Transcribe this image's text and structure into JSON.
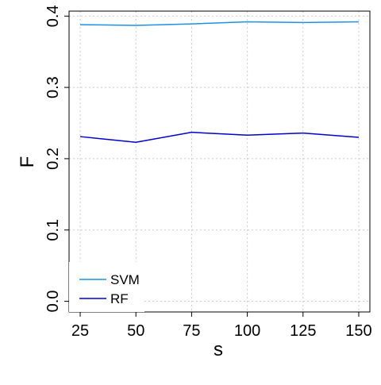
{
  "chart_data": {
    "type": "line",
    "xlabel": "s",
    "ylabel": "F",
    "x": [
      25,
      50,
      75,
      100,
      125,
      150
    ],
    "series": [
      {
        "name": "SVM",
        "color": "#1e90e8",
        "values": [
          0.388,
          0.387,
          0.389,
          0.392,
          0.391,
          0.392
        ]
      },
      {
        "name": "RF",
        "color": "#0000cd",
        "values": [
          0.231,
          0.223,
          0.237,
          0.233,
          0.236,
          0.23
        ]
      }
    ],
    "xlim": [
      20,
      155
    ],
    "xticks": [
      25,
      50,
      75,
      100,
      125,
      150
    ],
    "ylim": [
      -0.015,
      0.407
    ],
    "yticks": [
      {
        "value": 0,
        "label": "0.0"
      },
      0.1,
      0.2,
      0.3,
      0.4
    ],
    "grid": true,
    "legend": "bottom-left"
  }
}
